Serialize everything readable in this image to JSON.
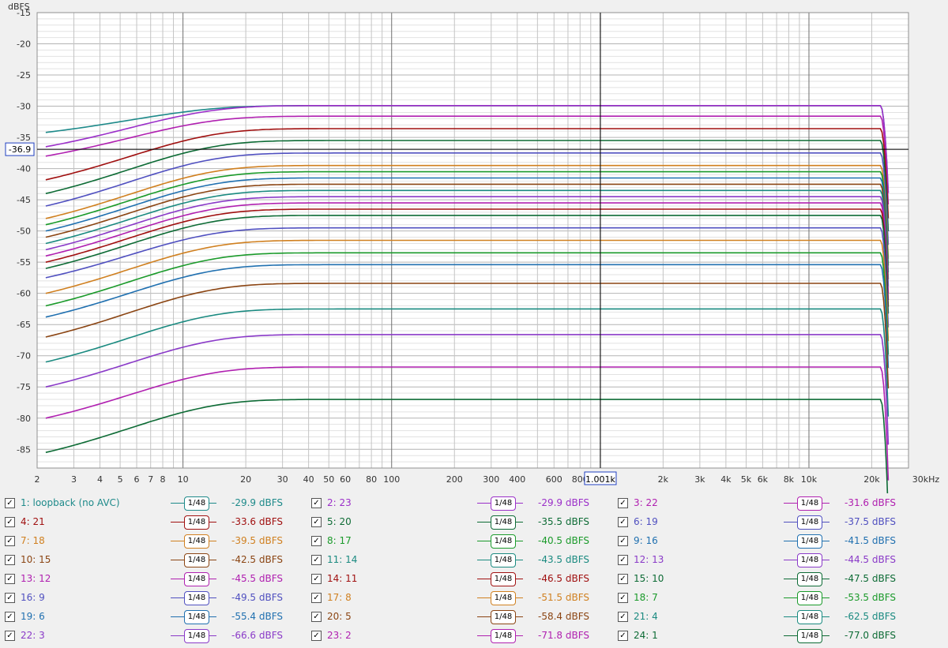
{
  "chart_data": {
    "type": "line",
    "ylabel": "dBFS",
    "xunit": "kHz",
    "xscale": "log",
    "xlim": [
      2,
      30000
    ],
    "ylim": [
      -88,
      -15
    ],
    "x_ticks": [
      {
        "v": 2,
        "label": "2"
      },
      {
        "v": 3,
        "label": "3"
      },
      {
        "v": 4,
        "label": "4"
      },
      {
        "v": 5,
        "label": "5"
      },
      {
        "v": 6,
        "label": "6"
      },
      {
        "v": 7,
        "label": "7"
      },
      {
        "v": 8,
        "label": "8"
      },
      {
        "v": 10,
        "label": "10"
      },
      {
        "v": 20,
        "label": "20"
      },
      {
        "v": 30,
        "label": "30"
      },
      {
        "v": 40,
        "label": "40"
      },
      {
        "v": 50,
        "label": "50"
      },
      {
        "v": 60,
        "label": "60"
      },
      {
        "v": 80,
        "label": "80"
      },
      {
        "v": 100,
        "label": "100"
      },
      {
        "v": 200,
        "label": "200"
      },
      {
        "v": 300,
        "label": "300"
      },
      {
        "v": 400,
        "label": "400"
      },
      {
        "v": 600,
        "label": "600"
      },
      {
        "v": 800,
        "label": "800"
      },
      {
        "v": 2000,
        "label": "2k"
      },
      {
        "v": 3000,
        "label": "3k"
      },
      {
        "v": 4000,
        "label": "4k"
      },
      {
        "v": 5000,
        "label": "5k"
      },
      {
        "v": 6000,
        "label": "6k"
      },
      {
        "v": 8000,
        "label": "8k"
      },
      {
        "v": 10000,
        "label": "10k"
      },
      {
        "v": 20000,
        "label": "20k"
      }
    ],
    "x_unit_label": "30kHz",
    "y_ticks": [
      -15,
      -20,
      -25,
      -30,
      -35,
      -40,
      -45,
      -50,
      -55,
      -60,
      -65,
      -70,
      -75,
      -80,
      -85
    ],
    "cursor": {
      "x": 1001,
      "x_label": "1.001k",
      "y": -36.9,
      "y_label": "-36.9"
    },
    "grid": true,
    "series": [
      {
        "name": "1: loopback (no AVC)",
        "color": "#1e8a8a",
        "start": -34.2,
        "level": -29.9,
        "smoothing": "1/48",
        "value": "-29.9 dBFS"
      },
      {
        "name": "2: 23",
        "color": "#9b2fc9",
        "start": -36.5,
        "level": -29.9,
        "smoothing": "1/48",
        "value": "-29.9 dBFS"
      },
      {
        "name": "3: 22",
        "color": "#b020b0",
        "start": -38.0,
        "level": -31.6,
        "smoothing": "1/48",
        "value": "-31.6 dBFS"
      },
      {
        "name": "4: 21",
        "color": "#a01010",
        "start": -41.8,
        "level": -33.6,
        "smoothing": "1/48",
        "value": "-33.6 dBFS"
      },
      {
        "name": "5: 20",
        "color": "#0d6b35",
        "start": -44.0,
        "level": -35.5,
        "smoothing": "1/48",
        "value": "-35.5 dBFS"
      },
      {
        "name": "6: 19",
        "color": "#5050c0",
        "start": -46.0,
        "level": -37.5,
        "smoothing": "1/48",
        "value": "-37.5 dBFS"
      },
      {
        "name": "7: 18",
        "color": "#d08020",
        "start": -48.0,
        "level": -39.5,
        "smoothing": "1/48",
        "value": "-39.5 dBFS"
      },
      {
        "name": "8: 17",
        "color": "#1a9a2a",
        "start": -49.0,
        "level": -40.5,
        "smoothing": "1/48",
        "value": "-40.5 dBFS"
      },
      {
        "name": "9: 16",
        "color": "#2070b0",
        "start": -50.0,
        "level": -41.5,
        "smoothing": "1/48",
        "value": "-41.5 dBFS"
      },
      {
        "name": "10: 15",
        "color": "#8b4513",
        "start": -51.0,
        "level": -42.5,
        "smoothing": "1/48",
        "value": "-42.5 dBFS"
      },
      {
        "name": "11: 14",
        "color": "#1a8a80",
        "start": -52.0,
        "level": -43.5,
        "smoothing": "1/48",
        "value": "-43.5 dBFS"
      },
      {
        "name": "12: 13",
        "color": "#8a3ac8",
        "start": -53.0,
        "level": -44.5,
        "smoothing": "1/48",
        "value": "-44.5 dBFS"
      },
      {
        "name": "13: 12",
        "color": "#b020b0",
        "start": -54.0,
        "level": -45.5,
        "smoothing": "1/48",
        "value": "-45.5 dBFS"
      },
      {
        "name": "14: 11",
        "color": "#a01010",
        "start": -55.0,
        "level": -46.5,
        "smoothing": "1/48",
        "value": "-46.5 dBFS"
      },
      {
        "name": "15: 10",
        "color": "#0d6b35",
        "start": -56.0,
        "level": -47.5,
        "smoothing": "1/48",
        "value": "-47.5 dBFS"
      },
      {
        "name": "16: 9",
        "color": "#5050c0",
        "start": -57.5,
        "level": -49.5,
        "smoothing": "1/48",
        "value": "-49.5 dBFS"
      },
      {
        "name": "17: 8",
        "color": "#d08020",
        "start": -60.0,
        "level": -51.5,
        "smoothing": "1/48",
        "value": "-51.5 dBFS"
      },
      {
        "name": "18: 7",
        "color": "#1a9a2a",
        "start": -62.0,
        "level": -53.5,
        "smoothing": "1/48",
        "value": "-53.5 dBFS"
      },
      {
        "name": "19: 6",
        "color": "#2070b0",
        "start": -63.8,
        "level": -55.4,
        "smoothing": "1/48",
        "value": "-55.4 dBFS"
      },
      {
        "name": "20: 5",
        "color": "#8b4513",
        "start": -67.0,
        "level": -58.4,
        "smoothing": "1/48",
        "value": "-58.4 dBFS"
      },
      {
        "name": "21: 4",
        "color": "#1a8a80",
        "start": -71.0,
        "level": -62.5,
        "smoothing": "1/48",
        "value": "-62.5 dBFS"
      },
      {
        "name": "22: 3",
        "color": "#8a3ac8",
        "start": -75.0,
        "level": -66.6,
        "smoothing": "1/48",
        "value": "-66.6 dBFS"
      },
      {
        "name": "23: 2",
        "color": "#b020b0",
        "start": -80.0,
        "level": -71.8,
        "smoothing": "1/48",
        "value": "-71.8 dBFS"
      },
      {
        "name": "24: 1",
        "color": "#0d6b35",
        "start": -85.5,
        "level": -77.0,
        "smoothing": "1/48",
        "value": "-77.0 dBFS"
      }
    ]
  }
}
